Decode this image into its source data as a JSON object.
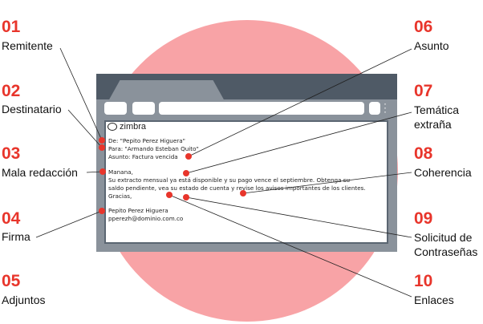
{
  "email": {
    "logo": "zimbra",
    "from": "De: \"Pepito Perez Higuera\"",
    "to": "Para: \"Armando Esteban Quito\"",
    "subject": "Asunto: Factura vencida",
    "greeting": "Manana,",
    "body_line1": "Su extracto mensual ya está disponible y su pago vence el septiembre. Obtenga su",
    "body_line2": "saldo pendiente, vea su estado de cuenta y revise los avisos importantes de los clientes.",
    "closing": "Gracias,",
    "sig_name": "Pepito Perez Higuera",
    "sig_email": "pperezh@dominio.com.co"
  },
  "callouts_left": [
    {
      "num": "01",
      "label": "Remitente"
    },
    {
      "num": "02",
      "label": "Destinatario"
    },
    {
      "num": "03",
      "label": "Mala redacción"
    },
    {
      "num": "04",
      "label": "Firma"
    },
    {
      "num": "05",
      "label": "Adjuntos"
    }
  ],
  "callouts_right": [
    {
      "num": "06",
      "label": "Asunto"
    },
    {
      "num": "07",
      "label_line1": "Temática",
      "label_line2": "extraña"
    },
    {
      "num": "08",
      "label": "Coherencia"
    },
    {
      "num": "09",
      "label_line1": "Solicitud de",
      "label_line2": "Contraseñas"
    },
    {
      "num": "10",
      "label": "Enlaces"
    }
  ],
  "colors": {
    "accent": "#e8352b",
    "circle": "#f8a3a6",
    "browser_frame": "#8a929b",
    "browser_top": "#4f5a66"
  }
}
